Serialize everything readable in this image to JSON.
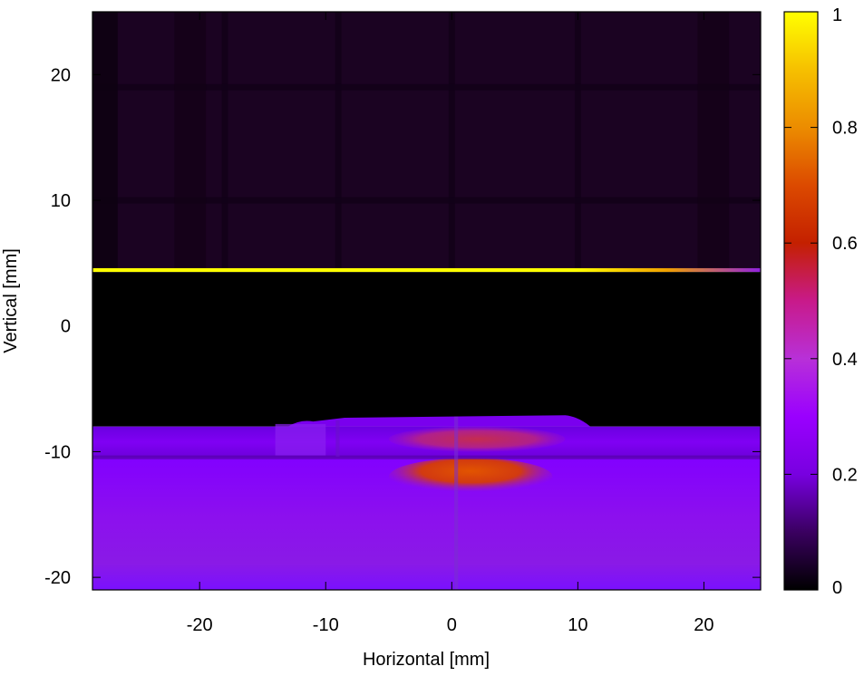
{
  "chart_data": {
    "type": "heatmap",
    "title": "",
    "xlabel": "Horizontal [mm]",
    "ylabel": "Vertical [mm]",
    "xlim": [
      -28.5,
      24.5
    ],
    "ylim": [
      -21,
      25
    ],
    "x_ticks": [
      -20,
      -10,
      0,
      10,
      20
    ],
    "x_tick_labels": [
      "-20",
      "-10",
      "0",
      "10",
      "20"
    ],
    "y_ticks": [
      -20,
      -10,
      0,
      10,
      20
    ],
    "y_tick_labels": [
      "-20",
      "-10",
      "0",
      "10",
      "20"
    ],
    "grid": false,
    "colormap": {
      "name": "gnuplot-hot-like",
      "range": [
        0,
        1
      ],
      "ticks": [
        0,
        0.2,
        0.4,
        0.6,
        0.8,
        1
      ],
      "tick_labels": [
        "0",
        "0.2",
        "0.4",
        "0.6",
        "0.8",
        "1"
      ],
      "stops": [
        {
          "v": 0.0,
          "color": "#000000"
        },
        {
          "v": 0.1,
          "color": "#3a0060"
        },
        {
          "v": 0.2,
          "color": "#7800e0"
        },
        {
          "v": 0.3,
          "color": "#9a00ff"
        },
        {
          "v": 0.4,
          "color": "#b830d8"
        },
        {
          "v": 0.5,
          "color": "#c81a8a"
        },
        {
          "v": 0.6,
          "color": "#c42000"
        },
        {
          "v": 0.7,
          "color": "#dc4a00"
        },
        {
          "v": 0.8,
          "color": "#ec8c00"
        },
        {
          "v": 0.9,
          "color": "#f6c000"
        },
        {
          "v": 1.0,
          "color": "#ffff00"
        }
      ]
    },
    "regions": [
      {
        "name": "upper-field",
        "x": [
          -28.5,
          24.5
        ],
        "y": [
          4.5,
          25
        ],
        "value": 0.03
      },
      {
        "name": "bright-line",
        "x": [
          -28.5,
          24.5
        ],
        "y": [
          4.3,
          4.6
        ],
        "value": 1.0
      },
      {
        "name": "dark-band",
        "x": [
          -28.5,
          24.5
        ],
        "y": [
          -8,
          4.3
        ],
        "value": 0.0
      },
      {
        "name": "upper-slab",
        "x": [
          -28.5,
          24.5
        ],
        "y": [
          -10.5,
          -8
        ],
        "value": 0.25
      },
      {
        "name": "lower-slab",
        "x": [
          -28.5,
          24.5
        ],
        "y": [
          -21,
          -10.5
        ],
        "value": 0.25
      },
      {
        "name": "upper-hotspot",
        "x": [
          -5,
          9
        ],
        "y": [
          -10,
          -8
        ],
        "value": 0.5
      },
      {
        "name": "lower-hotspot",
        "x": [
          -5,
          8
        ],
        "y": [
          -14,
          -11
        ],
        "value": 0.7
      }
    ]
  }
}
